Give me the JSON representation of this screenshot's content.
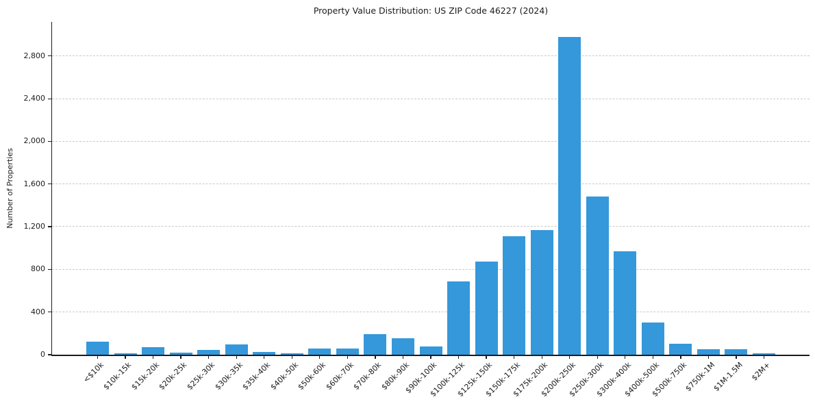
{
  "chart_data": {
    "type": "bar",
    "title": "Property Value Distribution: US ZIP Code 46227 (2024)",
    "xlabel": "",
    "ylabel": "Number of Properties",
    "categories": [
      "<$10k",
      "$10k-15k",
      "$15k-20k",
      "$20k-25k",
      "$25k-30k",
      "$30k-35k",
      "$35k-40k",
      "$40k-50k",
      "$50k-60k",
      "$60k-70k",
      "$70k-80k",
      "$80k-90k",
      "$90k-100k",
      "$100k-125k",
      "$125k-150k",
      "$150k-175k",
      "$175k-200k",
      "$200k-250k",
      "$250k-300k",
      "$300k-400k",
      "$400k-500k",
      "$500k-750k",
      "$750k-1M",
      "$1M-1.5M",
      "$2M+"
    ],
    "values": [
      120,
      10,
      70,
      20,
      45,
      95,
      28,
      10,
      60,
      55,
      190,
      155,
      75,
      690,
      870,
      1110,
      1170,
      2980,
      1485,
      970,
      300,
      105,
      50,
      50,
      15
    ],
    "yticks": [
      0,
      400,
      800,
      1200,
      1600,
      2000,
      2400,
      2800
    ],
    "ytick_labels": [
      "0",
      "400",
      "800",
      "1,200",
      "1,600",
      "2,000",
      "2,400",
      "2,800"
    ],
    "ylim": [
      0,
      3120
    ],
    "grid": "horizontal-dashed",
    "legend": "none",
    "xtick_rotation": 45,
    "bar_color": "#3498db",
    "axis_color": "#1a1a1a",
    "grid_color": "#c8c8c8",
    "background_color": "#ffffff"
  }
}
